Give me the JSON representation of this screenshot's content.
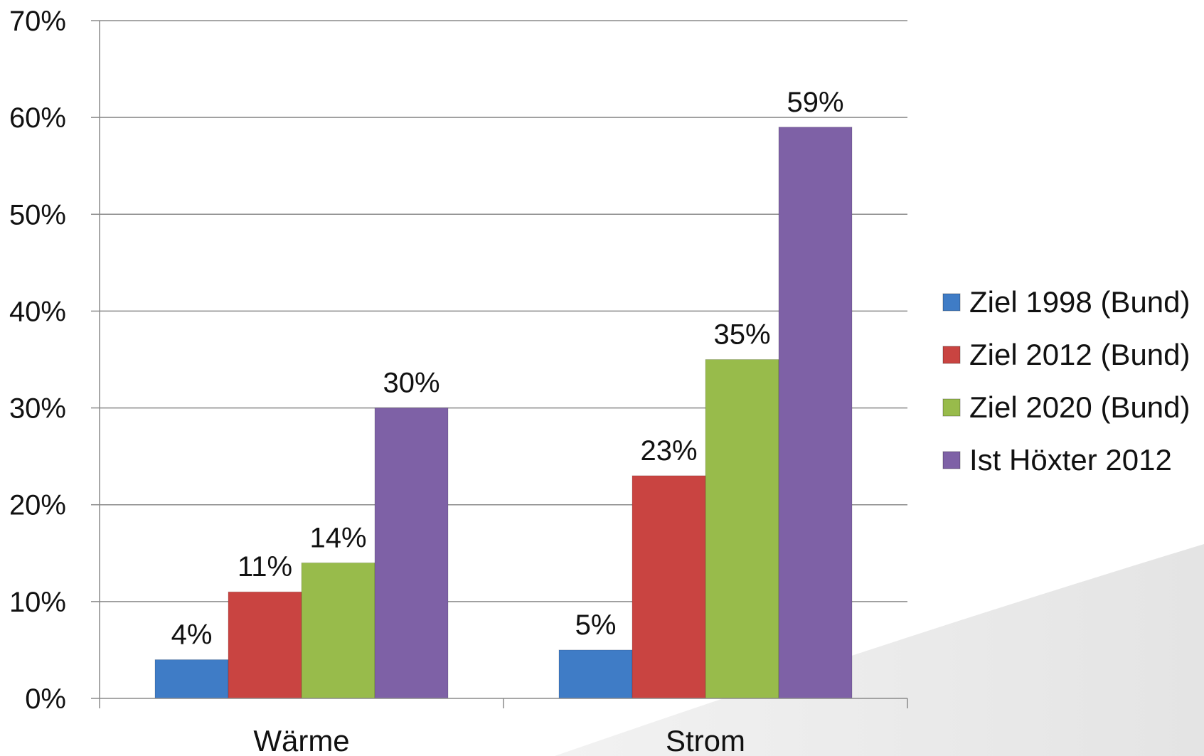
{
  "chart_data": {
    "type": "bar",
    "categories": [
      "Wärme",
      "Strom"
    ],
    "series": [
      {
        "name": "Ziel 1998 (Bund)",
        "values": [
          4,
          5
        ],
        "labels": [
          "4%",
          "5%"
        ],
        "color": "#3f7cc6"
      },
      {
        "name": "Ziel 2012 (Bund)",
        "values": [
          11,
          23
        ],
        "labels": [
          "11%",
          "23%"
        ],
        "color": "#c94441"
      },
      {
        "name": "Ziel 2020 (Bund)",
        "values": [
          14,
          35
        ],
        "labels": [
          "14%",
          "35%"
        ],
        "color": "#98bb4b"
      },
      {
        "name": "Ist Höxter 2012",
        "values": [
          30,
          59
        ],
        "labels": [
          "30%",
          "59%"
        ],
        "color": "#7e61a6"
      }
    ],
    "yticks": [
      "0%",
      "10%",
      "20%",
      "30%",
      "40%",
      "50%",
      "60%",
      "70%"
    ],
    "ylim": [
      0,
      70
    ],
    "grid": true,
    "legend": "right"
  }
}
